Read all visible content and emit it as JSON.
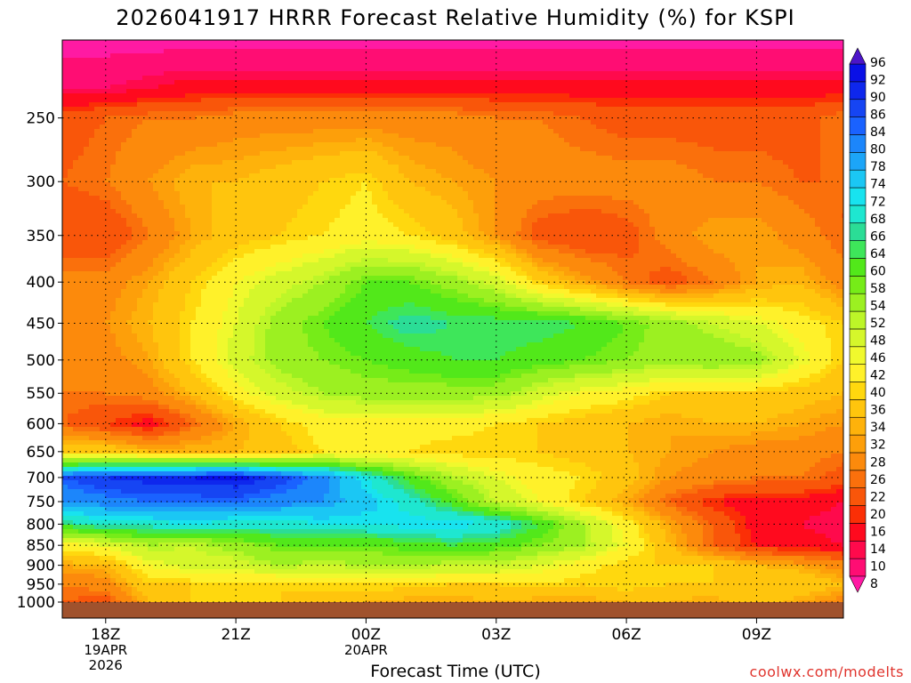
{
  "title": "2026041917 HRRR Forecast Relative Humidity (%) for KSPI",
  "credit": "coolwx.com/modelts",
  "chart_data": {
    "type": "heatmap",
    "title": "2026041917 HRRR Forecast Relative Humidity (%) for KSPI",
    "xlabel": "Forecast Time (UTC)",
    "ylabel": "",
    "x_ticks": [
      {
        "label": "18Z",
        "date": "19APR",
        "year": "2026"
      },
      {
        "label": "21Z"
      },
      {
        "label": "00Z",
        "date": "20APR"
      },
      {
        "label": "03Z"
      },
      {
        "label": "06Z"
      },
      {
        "label": "09Z"
      }
    ],
    "x_hours": [
      17,
      18,
      19,
      20,
      21,
      22,
      23,
      24,
      25,
      26,
      27,
      28,
      29,
      30,
      31,
      32,
      33,
      34,
      35
    ],
    "y_pressure_levels": [
      1000,
      950,
      900,
      850,
      800,
      750,
      700,
      650,
      600,
      550,
      500,
      450,
      400,
      350,
      300,
      250
    ],
    "y_axis": "log-pressure (hPa), reversed",
    "colorbar_levels": [
      8,
      10,
      14,
      16,
      20,
      22,
      26,
      28,
      32,
      34,
      36,
      40,
      42,
      46,
      48,
      52,
      54,
      58,
      60,
      64,
      66,
      68,
      72,
      74,
      78,
      80,
      84,
      86,
      90,
      92,
      96
    ],
    "colorbar_colors": [
      "#ff1aa3",
      "#ff0d73",
      "#ff0a4c",
      "#ff0a1e",
      "#fb2f06",
      "#f9560a",
      "#fa700c",
      "#fc8a0c",
      "#fd9f0a",
      "#feb20b",
      "#ffc50d",
      "#ffd80e",
      "#fff12a",
      "#f0f92d",
      "#d5f72b",
      "#bdf628",
      "#9cf021",
      "#76ec18",
      "#52e81a",
      "#3ee65a",
      "#2bdd96",
      "#1ee7d0",
      "#18e3ef",
      "#1bc7f4",
      "#1ca5f8",
      "#1c86fb",
      "#1a62ff",
      "#1645f3",
      "#0e27ed",
      "#0a10e6",
      "#4d15c9"
    ],
    "grid": "dotted",
    "rh_grid": [
      [
        26,
        24,
        36,
        40,
        40,
        40,
        36,
        36,
        34,
        34,
        36,
        34,
        34,
        36,
        36,
        34,
        40,
        34,
        30
      ],
      [
        28,
        30,
        40,
        40,
        40,
        40,
        42,
        42,
        42,
        40,
        40,
        42,
        40,
        42,
        40,
        40,
        40,
        40,
        36
      ],
      [
        34,
        36,
        46,
        50,
        50,
        54,
        52,
        54,
        54,
        52,
        52,
        48,
        44,
        40,
        40,
        40,
        36,
        34,
        30
      ],
      [
        44,
        48,
        54,
        52,
        56,
        60,
        60,
        60,
        62,
        64,
        62,
        58,
        54,
        46,
        36,
        26,
        20,
        18,
        16
      ],
      [
        66,
        70,
        70,
        72,
        70,
        70,
        72,
        72,
        74,
        74,
        72,
        64,
        54,
        44,
        34,
        26,
        18,
        16,
        14
      ],
      [
        80,
        82,
        84,
        84,
        84,
        82,
        80,
        76,
        70,
        62,
        52,
        46,
        40,
        34,
        26,
        20,
        18,
        18,
        16
      ],
      [
        86,
        90,
        92,
        92,
        94,
        88,
        82,
        72,
        62,
        54,
        48,
        44,
        42,
        38,
        32,
        30,
        28,
        28,
        24
      ],
      [
        40,
        40,
        36,
        36,
        36,
        38,
        42,
        42,
        42,
        40,
        40,
        40,
        38,
        36,
        34,
        32,
        30,
        30,
        28
      ],
      [
        26,
        22,
        18,
        26,
        34,
        40,
        44,
        44,
        44,
        44,
        42,
        40,
        38,
        36,
        34,
        36,
        36,
        34,
        32
      ],
      [
        28,
        28,
        30,
        36,
        44,
        50,
        54,
        56,
        56,
        56,
        56,
        50,
        46,
        44,
        40,
        40,
        40,
        38,
        36
      ],
      [
        30,
        30,
        34,
        42,
        50,
        56,
        58,
        60,
        62,
        64,
        64,
        62,
        60,
        58,
        56,
        58,
        56,
        48,
        40
      ],
      [
        32,
        32,
        36,
        42,
        48,
        56,
        60,
        64,
        68,
        66,
        66,
        66,
        64,
        60,
        56,
        52,
        48,
        44,
        40
      ],
      [
        30,
        30,
        34,
        40,
        46,
        50,
        54,
        60,
        60,
        56,
        50,
        40,
        34,
        28,
        24,
        28,
        34,
        36,
        30
      ],
      [
        22,
        22,
        28,
        34,
        38,
        40,
        42,
        44,
        42,
        38,
        32,
        24,
        22,
        24,
        30,
        34,
        34,
        30,
        26
      ],
      [
        26,
        28,
        32,
        36,
        36,
        38,
        40,
        42,
        36,
        34,
        32,
        30,
        30,
        30,
        30,
        28,
        28,
        26,
        26
      ],
      [
        24,
        26,
        28,
        28,
        30,
        30,
        30,
        30,
        30,
        30,
        28,
        28,
        26,
        24,
        24,
        24,
        24,
        24,
        28
      ],
      [
        14,
        14,
        16,
        18,
        18,
        18,
        18,
        18,
        18,
        18,
        18,
        18,
        18,
        18,
        18,
        18,
        18,
        18,
        18
      ],
      [
        8,
        8,
        8,
        8,
        8,
        8,
        8,
        8,
        8,
        8,
        8,
        8,
        8,
        8,
        8,
        8,
        8,
        8,
        8
      ]
    ],
    "rh_grid_pressure_rows": [
      1000,
      950,
      900,
      850,
      800,
      750,
      700,
      650,
      600,
      550,
      500,
      450,
      400,
      350,
      300,
      250,
      230,
      200
    ]
  }
}
